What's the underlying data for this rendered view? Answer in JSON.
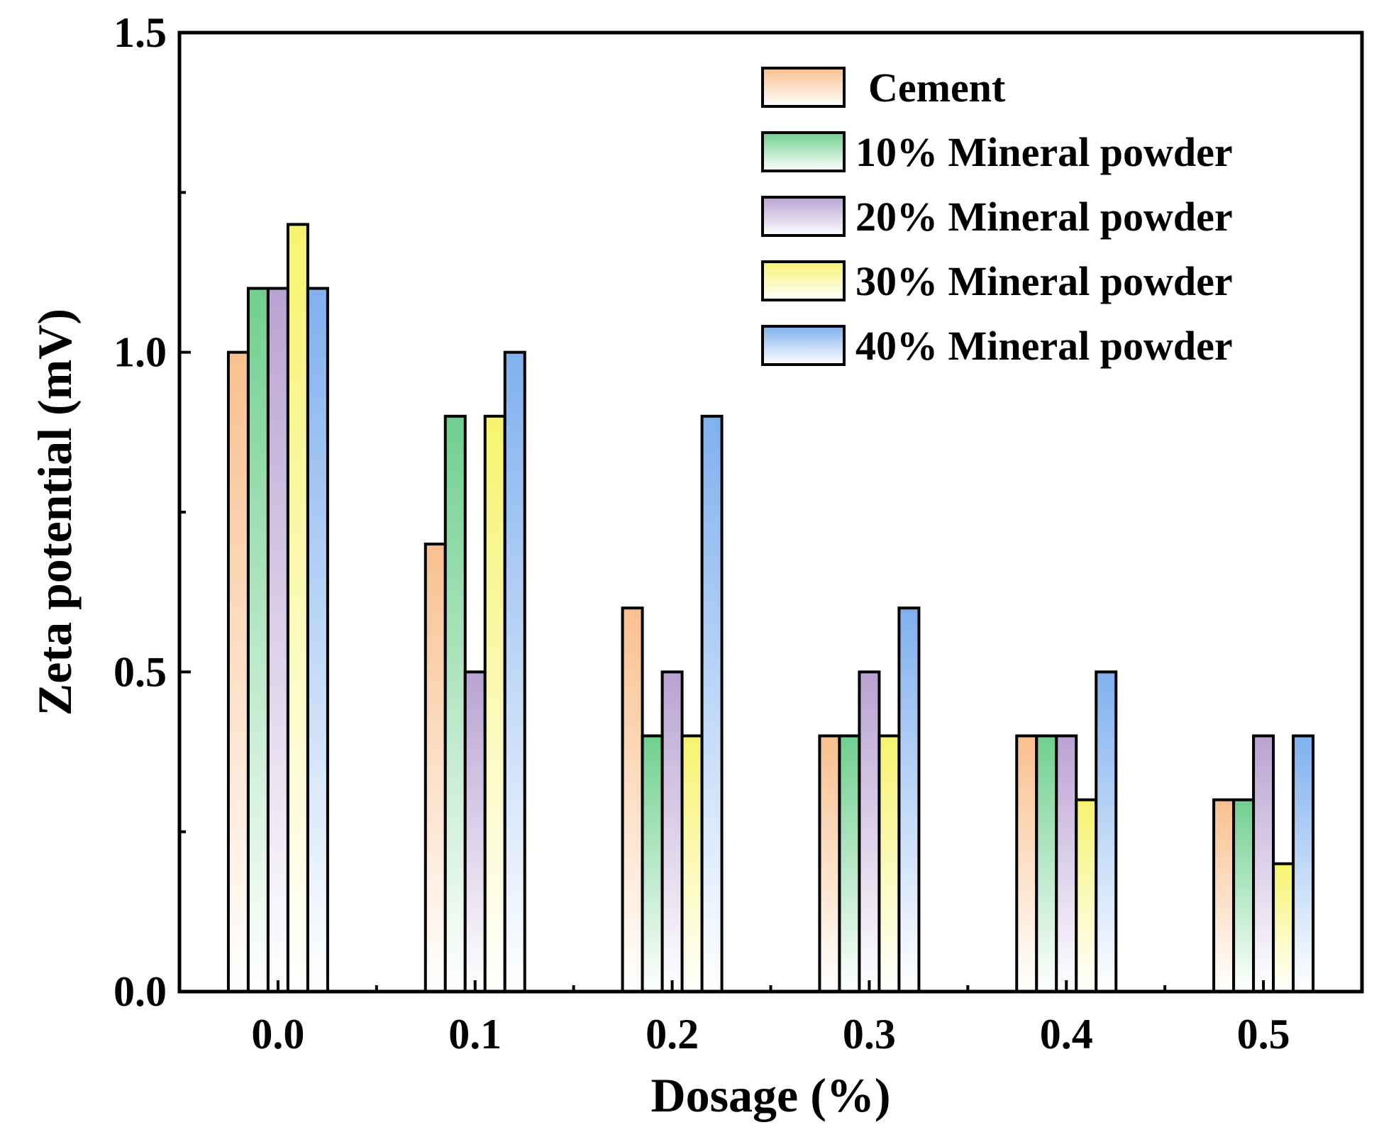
{
  "chart_data": {
    "type": "bar",
    "title": "",
    "xlabel": "Dosage (%)",
    "ylabel": "Zeta potential (mV)",
    "ylim": [
      0,
      1.5
    ],
    "y_ticks": [
      "0.0",
      "0.5",
      "1.0",
      "1.5"
    ],
    "grid": false,
    "legend_position": "top-right",
    "categories": [
      "0.0",
      "0.1",
      "0.2",
      "0.3",
      "0.4",
      "0.5"
    ],
    "series": [
      {
        "name": "Cement",
        "color": "#f9c08e",
        "values": [
          1.0,
          0.7,
          0.6,
          0.4,
          0.4,
          0.3
        ]
      },
      {
        "name": "10% Mineral powder",
        "color": "#6fcf8e",
        "values": [
          1.1,
          0.9,
          0.4,
          0.4,
          0.4,
          0.3
        ]
      },
      {
        "name": "20% Mineral powder",
        "color": "#b9a2d2",
        "values": [
          1.1,
          0.5,
          0.5,
          0.5,
          0.4,
          0.4
        ]
      },
      {
        "name": "30% Mineral powder",
        "color": "#f6f36e",
        "values": [
          1.2,
          0.9,
          0.4,
          0.4,
          0.3,
          0.2
        ]
      },
      {
        "name": "40% Mineral powder",
        "color": "#7fb0ee",
        "values": [
          1.1,
          1.0,
          0.9,
          0.6,
          0.5,
          0.4
        ]
      }
    ]
  }
}
